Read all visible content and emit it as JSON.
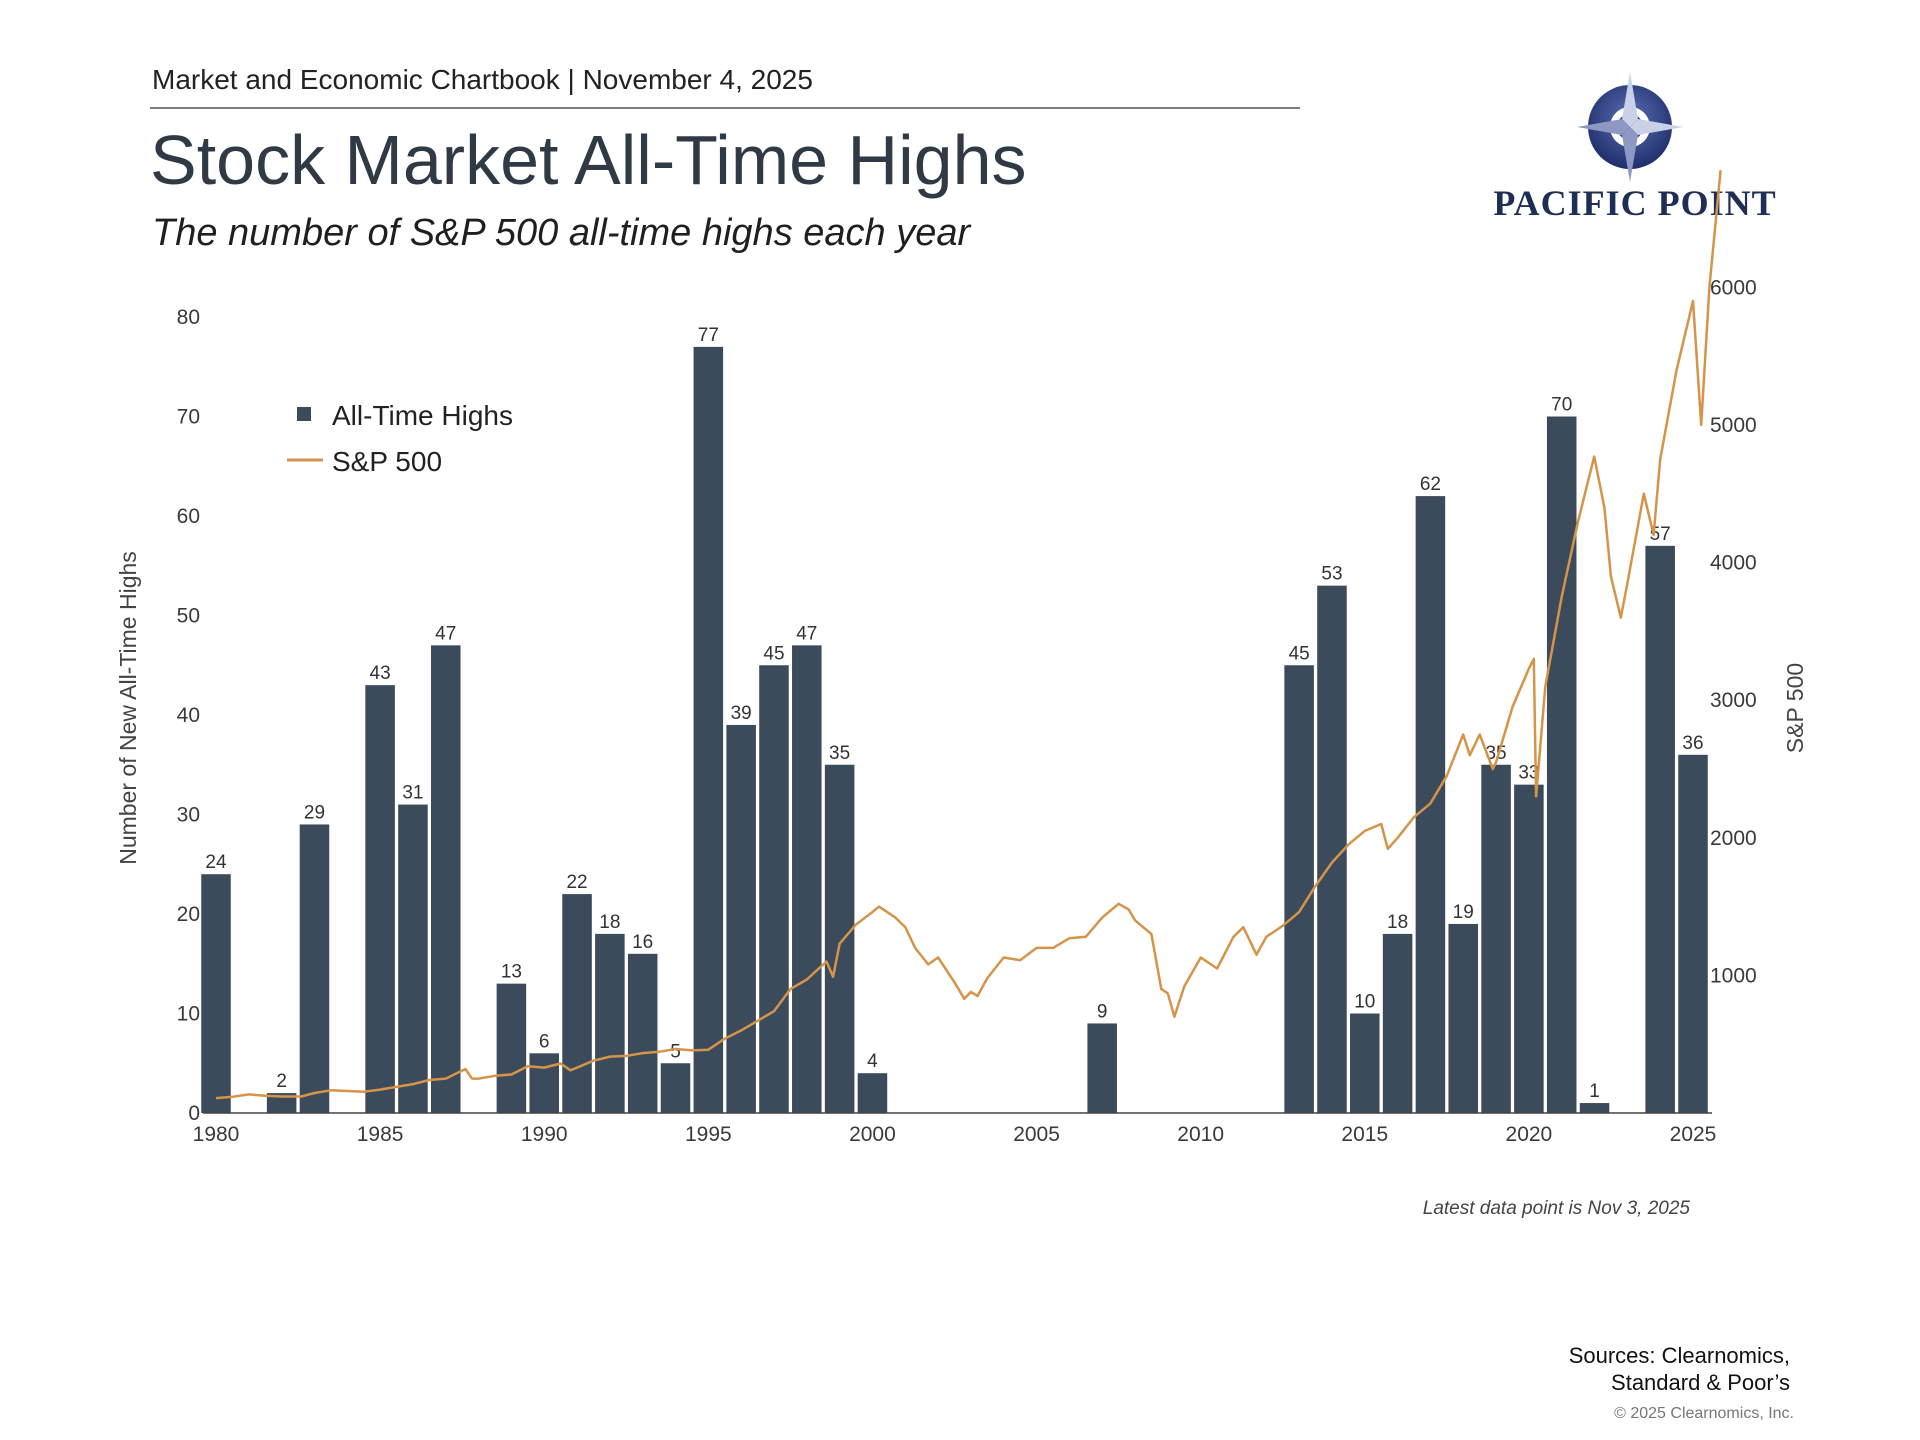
{
  "header": {
    "kicker": "Market and Economic Chartbook | November 4, 2025",
    "title": "Stock Market All-Time Highs",
    "subtitle": "The number of S&P 500 all-time highs each year"
  },
  "logo": {
    "text": "PACIFIC POINT",
    "icon": "compass-star-icon",
    "color": "#1f2e55"
  },
  "footer": {
    "note": "Latest data point is Nov 3, 2025",
    "sources_line1": "Sources: Clearnomics,",
    "sources_line2": "Standard & Poor’s",
    "copyright": "© 2025 Clearnomics, Inc."
  },
  "chart_data": {
    "type": "bar",
    "title": "Stock Market All-Time Highs",
    "ylabel": "Number of New All-Time Highs",
    "y2label": "S&P 500",
    "ylim": [
      0,
      80
    ],
    "y2lim": [
      0,
      6300
    ],
    "xlim": [
      1980,
      2025
    ],
    "grid": false,
    "legend_position": "top-left",
    "colors": {
      "bars": "#3b4b5b",
      "line": "#d4944a",
      "text": "#3a3a3a"
    },
    "y_ticks": [
      0,
      10,
      20,
      30,
      40,
      50,
      60,
      70,
      80
    ],
    "y2_ticks": [
      1000,
      2000,
      3000,
      4000,
      5000,
      6000
    ],
    "x_ticks": [
      1980,
      1985,
      1990,
      1995,
      2000,
      2005,
      2010,
      2015,
      2020,
      2025
    ],
    "series": [
      {
        "name": "All-Time Highs",
        "type": "bar",
        "x": [
          1980,
          1981,
          1982,
          1983,
          1984,
          1985,
          1986,
          1987,
          1988,
          1989,
          1990,
          1991,
          1992,
          1993,
          1994,
          1995,
          1996,
          1997,
          1998,
          1999,
          2000,
          2001,
          2002,
          2003,
          2004,
          2005,
          2006,
          2007,
          2008,
          2009,
          2010,
          2011,
          2012,
          2013,
          2014,
          2015,
          2016,
          2017,
          2018,
          2019,
          2020,
          2021,
          2022,
          2023,
          2024,
          2025
        ],
        "values": [
          24,
          0,
          2,
          29,
          0,
          43,
          31,
          47,
          0,
          13,
          6,
          22,
          18,
          16,
          5,
          77,
          39,
          45,
          47,
          35,
          4,
          0,
          0,
          0,
          0,
          0,
          0,
          9,
          0,
          0,
          0,
          0,
          0,
          45,
          53,
          10,
          18,
          62,
          19,
          35,
          33,
          70,
          1,
          0,
          57,
          36
        ]
      },
      {
        "name": "S&P 500",
        "type": "line",
        "axis": "right",
        "x": [
          1980.0,
          1980.5,
          1981.0,
          1981.5,
          1982.0,
          1982.6,
          1983.0,
          1983.5,
          1984.0,
          1984.5,
          1985.0,
          1985.5,
          1986.0,
          1986.5,
          1987.0,
          1987.6,
          1987.8,
          1988.0,
          1988.5,
          1989.0,
          1989.5,
          1990.0,
          1990.5,
          1990.8,
          1991.0,
          1991.5,
          1992.0,
          1992.5,
          1993.0,
          1993.5,
          1994.0,
          1994.5,
          1995.0,
          1995.5,
          1996.0,
          1996.5,
          1997.0,
          1997.5,
          1998.0,
          1998.6,
          1998.8,
          1999.0,
          1999.5,
          2000.0,
          2000.2,
          2000.7,
          2001.0,
          2001.3,
          2001.7,
          2002.0,
          2002.5,
          2002.8,
          2003.0,
          2003.2,
          2003.5,
          2004.0,
          2004.5,
          2005.0,
          2005.5,
          2006.0,
          2006.5,
          2007.0,
          2007.5,
          2007.8,
          2008.0,
          2008.5,
          2008.8,
          2009.0,
          2009.2,
          2009.5,
          2010.0,
          2010.5,
          2011.0,
          2011.3,
          2011.7,
          2012.0,
          2012.5,
          2013.0,
          2013.5,
          2014.0,
          2014.5,
          2015.0,
          2015.5,
          2015.7,
          2016.0,
          2016.5,
          2017.0,
          2017.5,
          2018.0,
          2018.2,
          2018.5,
          2018.9,
          2019.0,
          2019.5,
          2020.0,
          2020.15,
          2020.22,
          2020.5,
          2021.0,
          2021.5,
          2021.99,
          2022.3,
          2022.5,
          2022.8,
          2023.0,
          2023.5,
          2023.8,
          2024.0,
          2024.5,
          2025.0,
          2025.25,
          2025.5,
          2025.84
        ],
        "values": [
          108,
          118,
          135,
          125,
          120,
          120,
          145,
          165,
          160,
          155,
          170,
          190,
          210,
          240,
          250,
          320,
          250,
          250,
          270,
          280,
          340,
          330,
          360,
          310,
          330,
          380,
          410,
          415,
          435,
          445,
          465,
          455,
          460,
          540,
          600,
          670,
          740,
          900,
          970,
          1100,
          990,
          1230,
          1370,
          1460,
          1500,
          1420,
          1350,
          1200,
          1080,
          1130,
          950,
          830,
          880,
          850,
          980,
          1130,
          1110,
          1200,
          1200,
          1270,
          1280,
          1420,
          1520,
          1480,
          1400,
          1300,
          900,
          870,
          700,
          920,
          1130,
          1050,
          1280,
          1350,
          1150,
          1280,
          1360,
          1460,
          1650,
          1820,
          1950,
          2050,
          2100,
          1920,
          2000,
          2150,
          2250,
          2450,
          2750,
          2600,
          2750,
          2500,
          2550,
          2950,
          3230,
          3300,
          2300,
          3100,
          3750,
          4300,
          4770,
          4400,
          3900,
          3600,
          3850,
          4500,
          4200,
          4750,
          5400,
          5900,
          5000,
          6000,
          6850
        ]
      }
    ]
  }
}
